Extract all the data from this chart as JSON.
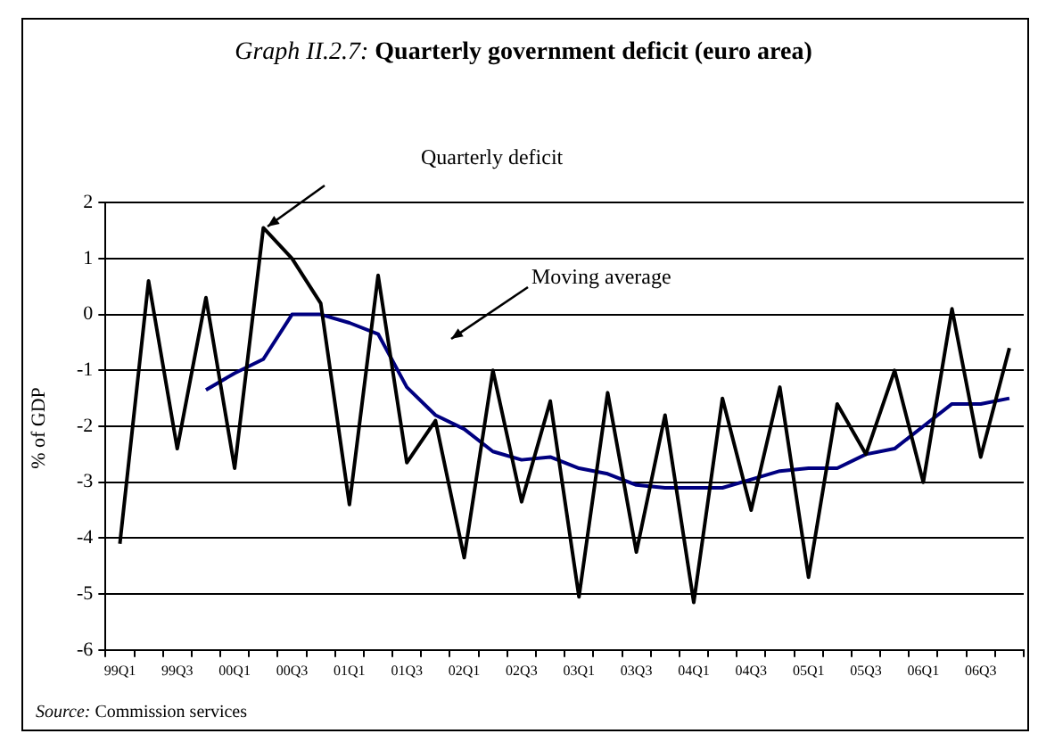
{
  "chart_data": {
    "type": "line",
    "title": "Graph II.2.7: Quarterly government deficit (euro area)",
    "ylabel": "% of GDP",
    "categories": [
      "99Q1",
      null,
      "99Q3",
      null,
      "00Q1",
      null,
      "00Q3",
      null,
      "01Q1",
      null,
      "01Q3",
      null,
      "02Q1",
      null,
      "02Q3",
      null,
      "03Q1",
      null,
      "03Q3",
      null,
      "04Q1",
      null,
      "04Q3",
      null,
      "05Q1",
      null,
      "05Q3",
      null,
      "06Q1",
      null,
      "06Q3",
      null
    ],
    "series": [
      {
        "color": "#000000",
        "values": [
          -4.1,
          0.6,
          -2.4,
          0.3,
          -2.75,
          1.55,
          1.0,
          0.2,
          -3.4,
          0.7,
          -2.65,
          -1.9,
          -4.35,
          -1.0,
          -3.35,
          -1.55,
          -5.05,
          -1.4,
          -4.25,
          -1.8,
          -5.15,
          -1.5,
          -3.5,
          -1.3,
          -4.7,
          -1.6,
          -2.5,
          -1.0,
          -3.0,
          0.1,
          -2.55,
          -0.6
        ]
      },
      {
        "color": "#000080",
        "values": [
          null,
          null,
          null,
          -1.35,
          -1.05,
          -0.8,
          0.0,
          0.0,
          -0.15,
          -0.35,
          -1.3,
          -1.8,
          -2.05,
          -2.45,
          -2.6,
          -2.55,
          -2.75,
          -2.85,
          -3.05,
          -3.1,
          -3.1,
          -3.1,
          -2.95,
          -2.8,
          -2.75,
          -2.75,
          -2.5,
          -2.4,
          -2.0,
          -1.6,
          -1.6,
          -1.5
        ]
      }
    ],
    "ylim": [
      -6,
      2
    ],
    "yticks": [
      -6,
      -5,
      -4,
      -3,
      -2,
      -1,
      0,
      1,
      2
    ],
    "grid": "y",
    "legend": false,
    "marker": "none",
    "line_style": "solid",
    "annotations": [
      "Quarterly deficit",
      "Moving average",
      "Source: Commission services"
    ]
  }
}
